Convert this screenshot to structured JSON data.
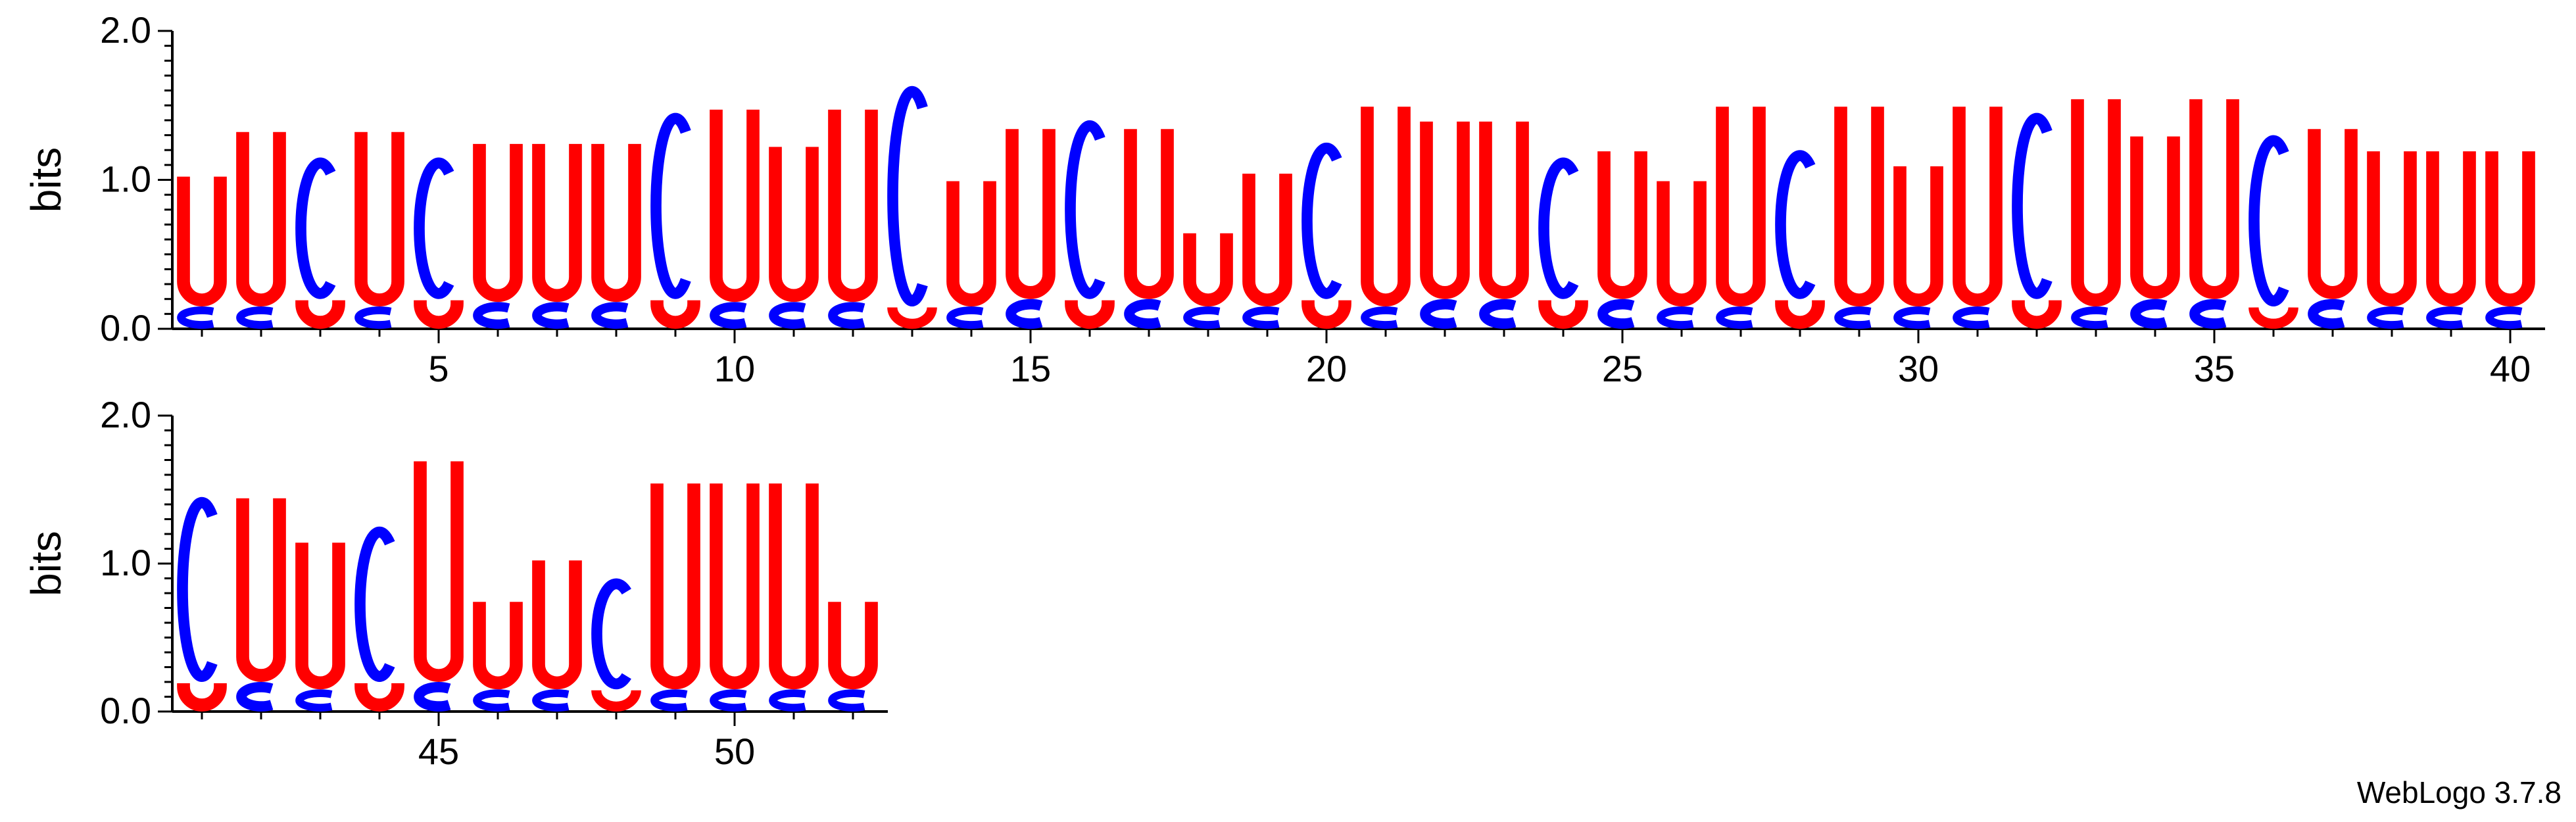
{
  "chart_data": {
    "type": "sequence-logo",
    "ylabel": "bits",
    "ylim": [
      0,
      2.0
    ],
    "y_ticks": [
      "0.0",
      "1.0",
      "2.0"
    ],
    "colors": {
      "U": "#ff0000",
      "C": "#0000ff",
      "A": "#008000",
      "G": "#ffa500"
    },
    "rows": [
      {
        "positions": [
          1,
          2,
          3,
          4,
          5,
          6,
          7,
          8,
          9,
          10,
          11,
          12,
          13,
          14,
          15,
          16,
          17,
          18,
          19,
          20,
          21,
          22,
          23,
          24,
          25,
          26,
          27,
          28,
          29,
          30,
          31,
          32,
          33,
          34,
          35,
          36,
          37,
          38,
          39,
          40
        ],
        "x_tick_labels": [
          "5",
          "10",
          "15",
          "20",
          "25",
          "30",
          "35",
          "40"
        ]
      },
      {
        "positions": [
          41,
          42,
          43,
          44,
          45,
          46,
          47,
          48,
          49,
          50,
          51,
          52
        ],
        "x_tick_labels": [
          "45",
          "50"
        ]
      }
    ],
    "columns": [
      {
        "pos": 1,
        "stack": [
          [
            "C",
            0.15
          ],
          [
            "U",
            0.88
          ]
        ]
      },
      {
        "pos": 2,
        "stack": [
          [
            "C",
            0.15
          ],
          [
            "U",
            1.18
          ]
        ]
      },
      {
        "pos": 3,
        "stack": [
          [
            "U",
            0.2
          ],
          [
            "C",
            0.95
          ]
        ]
      },
      {
        "pos": 4,
        "stack": [
          [
            "C",
            0.15
          ],
          [
            "U",
            1.18
          ]
        ]
      },
      {
        "pos": 5,
        "stack": [
          [
            "U",
            0.2
          ],
          [
            "C",
            0.95
          ]
        ]
      },
      {
        "pos": 6,
        "stack": [
          [
            "C",
            0.18
          ],
          [
            "U",
            1.07
          ]
        ]
      },
      {
        "pos": 7,
        "stack": [
          [
            "C",
            0.18
          ],
          [
            "U",
            1.07
          ]
        ]
      },
      {
        "pos": 8,
        "stack": [
          [
            "C",
            0.18
          ],
          [
            "U",
            1.07
          ]
        ]
      },
      {
        "pos": 9,
        "stack": [
          [
            "U",
            0.2
          ],
          [
            "C",
            1.25
          ]
        ]
      },
      {
        "pos": 10,
        "stack": [
          [
            "C",
            0.18
          ],
          [
            "U",
            1.3
          ]
        ]
      },
      {
        "pos": 11,
        "stack": [
          [
            "C",
            0.18
          ],
          [
            "U",
            1.05
          ]
        ]
      },
      {
        "pos": 12,
        "stack": [
          [
            "C",
            0.18
          ],
          [
            "U",
            1.3
          ]
        ]
      },
      {
        "pos": 13,
        "stack": [
          [
            "U",
            0.15
          ],
          [
            "C",
            1.48
          ]
        ]
      },
      {
        "pos": 14,
        "stack": [
          [
            "C",
            0.15
          ],
          [
            "U",
            0.85
          ]
        ]
      },
      {
        "pos": 15,
        "stack": [
          [
            "C",
            0.2
          ],
          [
            "U",
            1.15
          ]
        ]
      },
      {
        "pos": 16,
        "stack": [
          [
            "U",
            0.2
          ],
          [
            "C",
            1.2
          ]
        ]
      },
      {
        "pos": 17,
        "stack": [
          [
            "C",
            0.2
          ],
          [
            "U",
            1.15
          ]
        ]
      },
      {
        "pos": 18,
        "stack": [
          [
            "C",
            0.15
          ],
          [
            "U",
            0.5
          ]
        ]
      },
      {
        "pos": 19,
        "stack": [
          [
            "C",
            0.15
          ],
          [
            "U",
            0.9
          ]
        ]
      },
      {
        "pos": 20,
        "stack": [
          [
            "U",
            0.2
          ],
          [
            "C",
            1.05
          ]
        ]
      },
      {
        "pos": 21,
        "stack": [
          [
            "C",
            0.15
          ],
          [
            "U",
            1.35
          ]
        ]
      },
      {
        "pos": 22,
        "stack": [
          [
            "C",
            0.2
          ],
          [
            "U",
            1.2
          ]
        ]
      },
      {
        "pos": 23,
        "stack": [
          [
            "C",
            0.2
          ],
          [
            "U",
            1.2
          ]
        ]
      },
      {
        "pos": 24,
        "stack": [
          [
            "U",
            0.2
          ],
          [
            "C",
            0.95
          ]
        ]
      },
      {
        "pos": 25,
        "stack": [
          [
            "C",
            0.2
          ],
          [
            "U",
            1.0
          ]
        ]
      },
      {
        "pos": 26,
        "stack": [
          [
            "C",
            0.15
          ],
          [
            "U",
            0.85
          ]
        ]
      },
      {
        "pos": 27,
        "stack": [
          [
            "C",
            0.15
          ],
          [
            "U",
            1.35
          ]
        ]
      },
      {
        "pos": 28,
        "stack": [
          [
            "U",
            0.2
          ],
          [
            "C",
            1.0
          ]
        ]
      },
      {
        "pos": 29,
        "stack": [
          [
            "C",
            0.15
          ],
          [
            "U",
            1.35
          ]
        ]
      },
      {
        "pos": 30,
        "stack": [
          [
            "C",
            0.15
          ],
          [
            "U",
            0.95
          ]
        ]
      },
      {
        "pos": 31,
        "stack": [
          [
            "C",
            0.15
          ],
          [
            "U",
            1.35
          ]
        ]
      },
      {
        "pos": 32,
        "stack": [
          [
            "U",
            0.2
          ],
          [
            "C",
            1.25
          ]
        ]
      },
      {
        "pos": 33,
        "stack": [
          [
            "C",
            0.15
          ],
          [
            "U",
            1.4
          ]
        ]
      },
      {
        "pos": 34,
        "stack": [
          [
            "C",
            0.2
          ],
          [
            "U",
            1.1
          ]
        ]
      },
      {
        "pos": 35,
        "stack": [
          [
            "C",
            0.2
          ],
          [
            "U",
            1.35
          ]
        ]
      },
      {
        "pos": 36,
        "stack": [
          [
            "U",
            0.15
          ],
          [
            "C",
            1.15
          ]
        ]
      },
      {
        "pos": 37,
        "stack": [
          [
            "C",
            0.2
          ],
          [
            "U",
            1.15
          ]
        ]
      },
      {
        "pos": 38,
        "stack": [
          [
            "C",
            0.15
          ],
          [
            "U",
            1.05
          ]
        ]
      },
      {
        "pos": 39,
        "stack": [
          [
            "C",
            0.15
          ],
          [
            "U",
            1.05
          ]
        ]
      },
      {
        "pos": 40,
        "stack": [
          [
            "C",
            0.15
          ],
          [
            "U",
            1.05
          ]
        ]
      },
      {
        "pos": 41,
        "stack": [
          [
            "U",
            0.2
          ],
          [
            "C",
            1.25
          ]
        ]
      },
      {
        "pos": 42,
        "stack": [
          [
            "C",
            0.2
          ],
          [
            "U",
            1.25
          ]
        ]
      },
      {
        "pos": 43,
        "stack": [
          [
            "C",
            0.15
          ],
          [
            "U",
            1.0
          ]
        ]
      },
      {
        "pos": 44,
        "stack": [
          [
            "U",
            0.2
          ],
          [
            "C",
            1.05
          ]
        ]
      },
      {
        "pos": 45,
        "stack": [
          [
            "C",
            0.2
          ],
          [
            "U",
            1.5
          ]
        ]
      },
      {
        "pos": 46,
        "stack": [
          [
            "C",
            0.15
          ],
          [
            "U",
            0.6
          ]
        ]
      },
      {
        "pos": 47,
        "stack": [
          [
            "C",
            0.15
          ],
          [
            "U",
            0.88
          ]
        ]
      },
      {
        "pos": 48,
        "stack": [
          [
            "U",
            0.15
          ],
          [
            "C",
            0.75
          ]
        ]
      },
      {
        "pos": 49,
        "stack": [
          [
            "C",
            0.15
          ],
          [
            "U",
            1.4
          ]
        ]
      },
      {
        "pos": 50,
        "stack": [
          [
            "C",
            0.15
          ],
          [
            "U",
            1.4
          ]
        ]
      },
      {
        "pos": 51,
        "stack": [
          [
            "C",
            0.15
          ],
          [
            "U",
            1.4
          ]
        ]
      },
      {
        "pos": 52,
        "stack": [
          [
            "C",
            0.15
          ],
          [
            "U",
            0.6
          ]
        ]
      }
    ]
  },
  "credit": "WebLogo 3.7.8"
}
